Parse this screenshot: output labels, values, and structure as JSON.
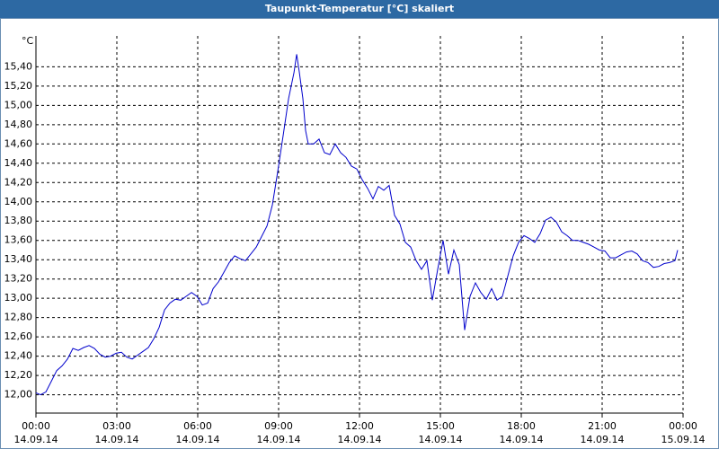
{
  "chart_data": {
    "type": "line",
    "title": "Taupunkt-Temperatur [°C] skaliert",
    "y_unit": "°C",
    "x": [
      0,
      0.17,
      0.37,
      0.57,
      0.77,
      0.97,
      1.17,
      1.37,
      1.57,
      1.77,
      1.97,
      2.17,
      2.37,
      2.57,
      2.77,
      2.97,
      3.17,
      3.37,
      3.57,
      3.77,
      3.97,
      4.17,
      4.37,
      4.57,
      4.77,
      4.97,
      5.17,
      5.37,
      5.57,
      5.77,
      5.97,
      6.17,
      6.37,
      6.57,
      6.77,
      6.97,
      7.17,
      7.37,
      7.57,
      7.77,
      7.97,
      8.17,
      8.37,
      8.57,
      8.77,
      8.97,
      9.17,
      9.37,
      9.57,
      9.67,
      9.77,
      9.9,
      10.0,
      10.1,
      10.3,
      10.5,
      10.7,
      10.9,
      11.1,
      11.3,
      11.5,
      11.7,
      11.9,
      12.1,
      12.3,
      12.5,
      12.7,
      12.9,
      13.1,
      13.3,
      13.5,
      13.7,
      13.9,
      14.1,
      14.3,
      14.5,
      14.7,
      14.9,
      15.1,
      15.3,
      15.5,
      15.7,
      15.9,
      16.1,
      16.3,
      16.5,
      16.7,
      16.9,
      17.1,
      17.3,
      17.5,
      17.7,
      17.9,
      18.1,
      18.3,
      18.5,
      18.7,
      18.9,
      19.1,
      19.3,
      19.5,
      19.7,
      19.9,
      20.1,
      20.3,
      20.5,
      20.7,
      20.9,
      21.1,
      21.3,
      21.5,
      21.7,
      21.9,
      22.1,
      22.3,
      22.5,
      22.7,
      22.9,
      23.1,
      23.3,
      23.5,
      23.7,
      23.8
    ],
    "series": [
      {
        "name": "Taupunkt-Temperatur",
        "color": "#0000cc",
        "values": [
          12.02,
          12.0,
          12.03,
          12.14,
          12.25,
          12.3,
          12.37,
          12.48,
          12.46,
          12.49,
          12.51,
          12.48,
          12.42,
          12.39,
          12.4,
          12.43,
          12.44,
          12.39,
          12.37,
          12.41,
          12.45,
          12.49,
          12.58,
          12.7,
          12.88,
          12.95,
          12.99,
          12.98,
          13.02,
          13.06,
          13.02,
          12.93,
          12.95,
          13.1,
          13.17,
          13.27,
          13.37,
          13.44,
          13.41,
          13.39,
          13.46,
          13.53,
          13.64,
          13.75,
          13.97,
          14.32,
          14.69,
          15.07,
          15.34,
          15.53,
          15.34,
          15.07,
          14.74,
          14.6,
          14.6,
          14.65,
          14.51,
          14.49,
          14.6,
          14.51,
          14.46,
          14.37,
          14.34,
          14.23,
          14.14,
          14.03,
          14.16,
          14.12,
          14.17,
          13.86,
          13.77,
          13.58,
          13.53,
          13.39,
          13.3,
          13.39,
          12.98,
          13.3,
          13.6,
          13.25,
          13.5,
          13.35,
          12.67,
          13.02,
          13.16,
          13.06,
          12.99,
          13.1,
          12.98,
          13.02,
          13.23,
          13.44,
          13.58,
          13.65,
          13.62,
          13.58,
          13.67,
          13.81,
          13.84,
          13.79,
          13.69,
          13.65,
          13.6,
          13.6,
          13.58,
          13.56,
          13.53,
          13.5,
          13.49,
          13.42,
          13.42,
          13.45,
          13.48,
          13.49,
          13.46,
          13.39,
          13.37,
          13.32,
          13.33,
          13.36,
          13.37,
          13.39,
          13.5
        ]
      }
    ],
    "xlim": [
      0,
      24
    ],
    "xticks": [
      {
        "value": 0,
        "label": "00:00\n14.09.14"
      },
      {
        "value": 3,
        "label": "03:00\n14.09.14"
      },
      {
        "value": 6,
        "label": "06:00\n14.09.14"
      },
      {
        "value": 9,
        "label": "09:00\n14.09.14"
      },
      {
        "value": 12,
        "label": "12:00\n14.09.14"
      },
      {
        "value": 15,
        "label": "15:00\n14.09.14"
      },
      {
        "value": 18,
        "label": "18:00\n14.09.14"
      },
      {
        "value": 21,
        "label": "21:00\n14.09.14"
      },
      {
        "value": 24,
        "label": "00:00\n15.09.14"
      }
    ],
    "ylim": [
      11.81,
      15.72
    ],
    "yticks": [
      {
        "value": 12.0,
        "label": "12,00"
      },
      {
        "value": 12.2,
        "label": "12,20"
      },
      {
        "value": 12.4,
        "label": "12,40"
      },
      {
        "value": 12.6,
        "label": "12,60"
      },
      {
        "value": 12.8,
        "label": "12,80"
      },
      {
        "value": 13.0,
        "label": "13,00"
      },
      {
        "value": 13.2,
        "label": "13,20"
      },
      {
        "value": 13.4,
        "label": "13,40"
      },
      {
        "value": 13.6,
        "label": "13,60"
      },
      {
        "value": 13.8,
        "label": "13,80"
      },
      {
        "value": 14.0,
        "label": "14,00"
      },
      {
        "value": 14.2,
        "label": "14,20"
      },
      {
        "value": 14.4,
        "label": "14,40"
      },
      {
        "value": 14.6,
        "label": "14,60"
      },
      {
        "value": 14.8,
        "label": "14,80"
      },
      {
        "value": 15.0,
        "label": "15,00"
      },
      {
        "value": 15.2,
        "label": "15,20"
      },
      {
        "value": 15.4,
        "label": "15,40"
      }
    ],
    "grid": true
  }
}
